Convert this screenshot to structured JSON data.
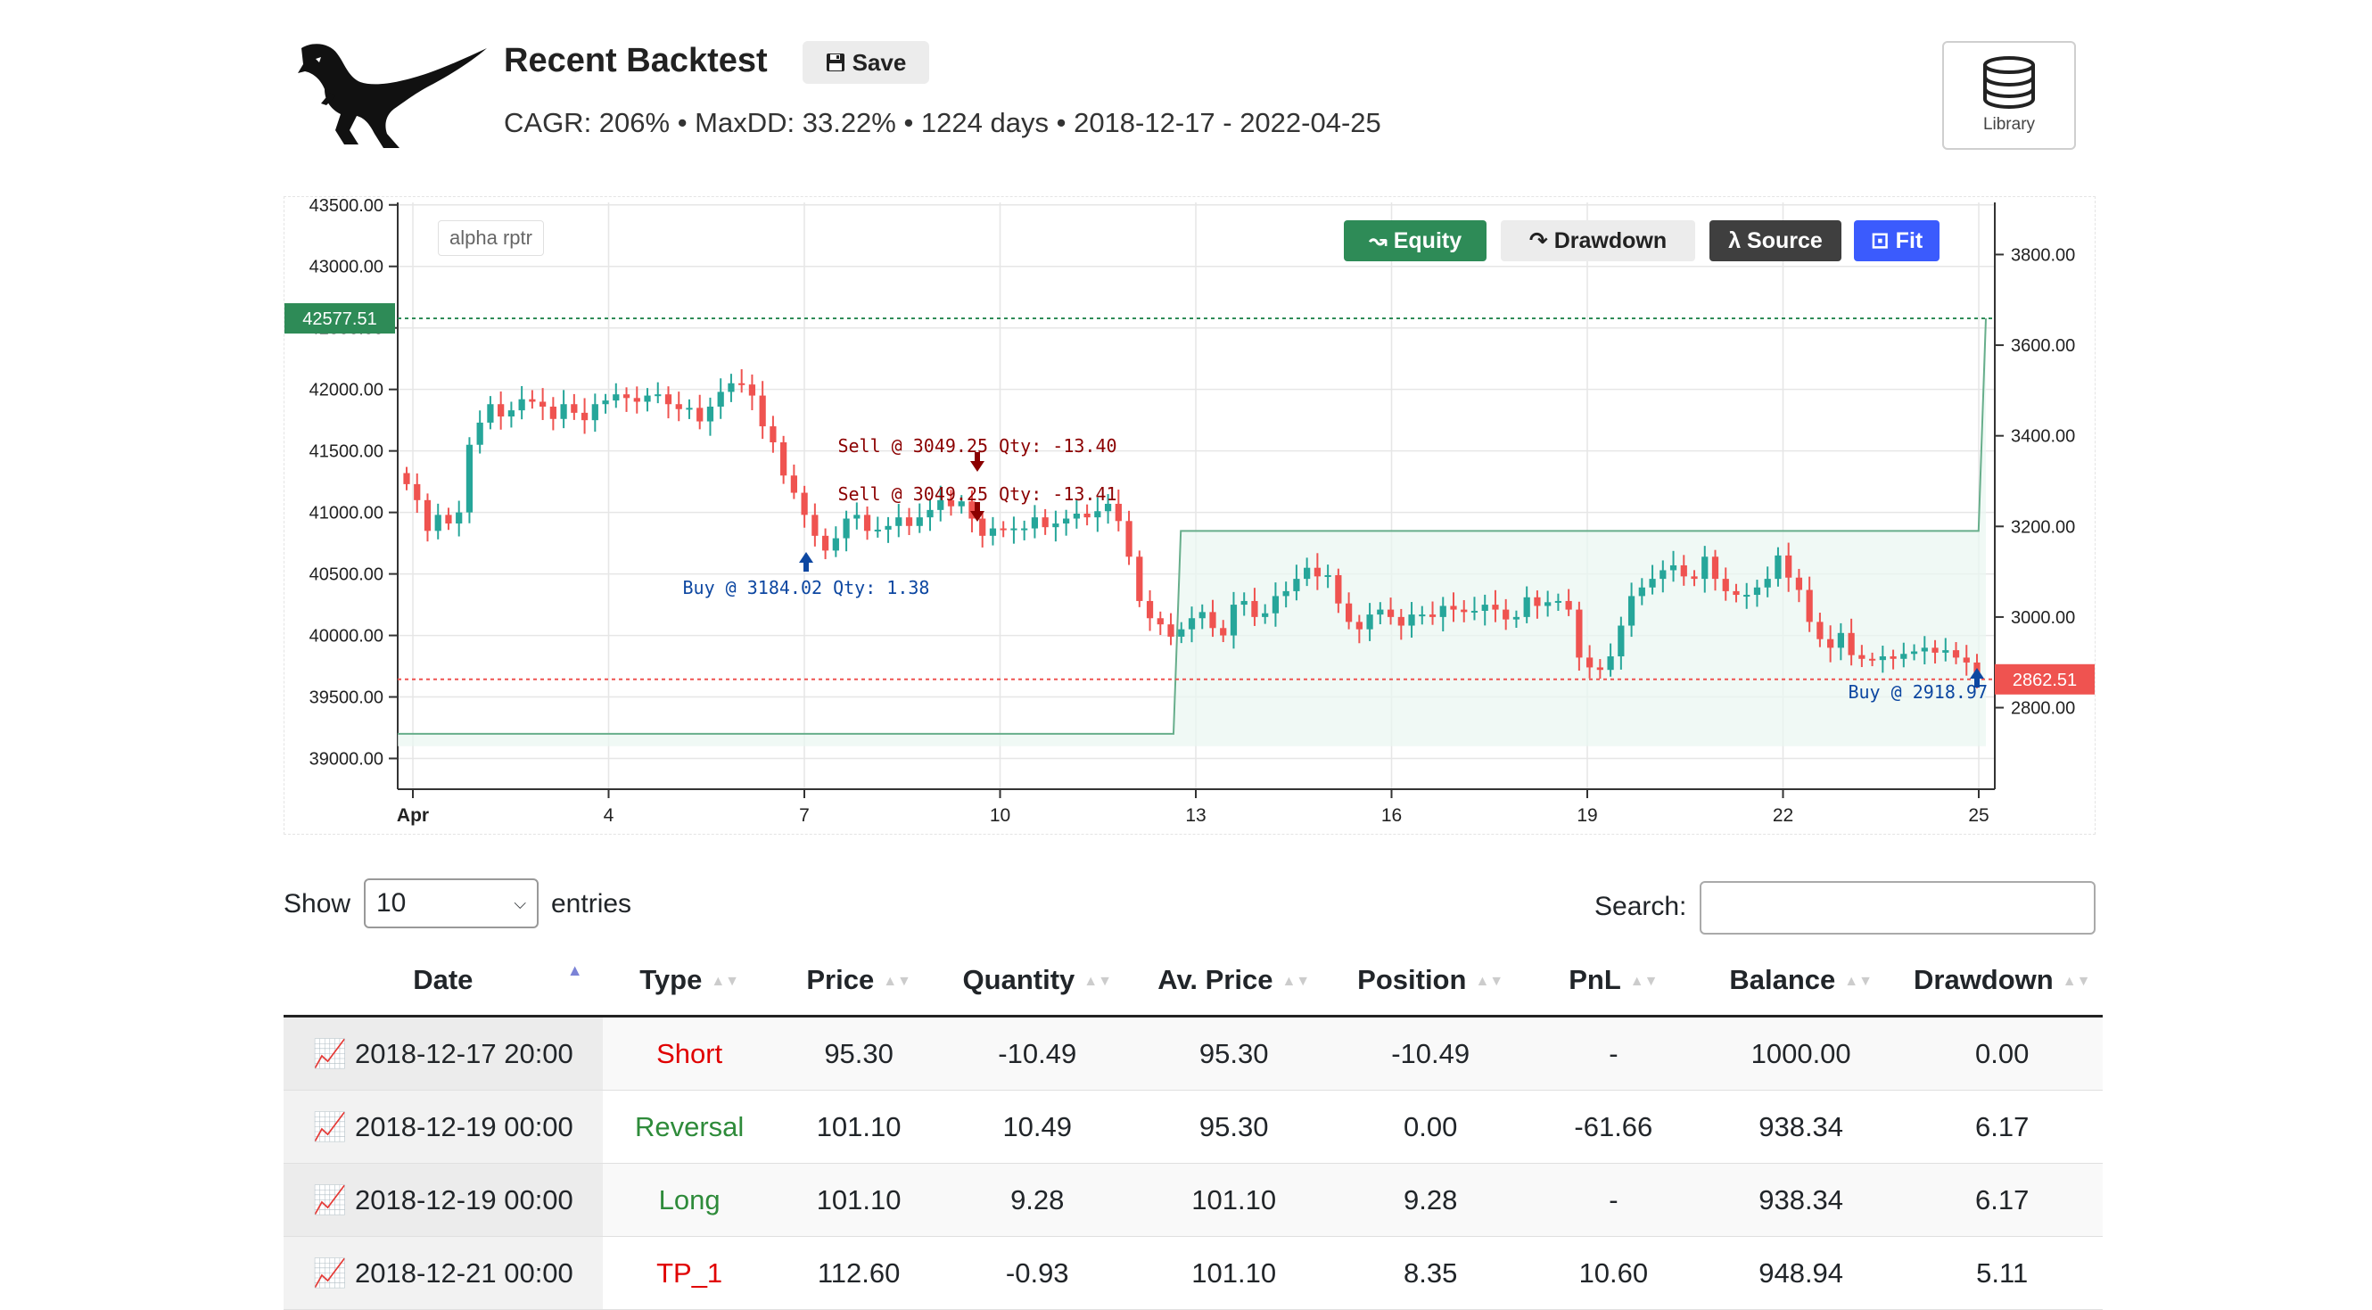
{
  "header": {
    "title": "Recent Backtest",
    "save_label": "Save",
    "stats": "CAGR: 206% • MaxDD: 33.22% • 1224 days • 2018-12-17 - 2022-04-25",
    "library_label": "Library"
  },
  "chart_buttons": {
    "strategy_label": "alpha rptr",
    "equity": "↝ Equity",
    "drawdown": "↷ Drawdown",
    "source": "λ Source",
    "fit": "⊡ Fit"
  },
  "chart_data": {
    "type": "candlestick",
    "left_axis": {
      "ticks": [
        "39000.00",
        "39500.00",
        "40000.00",
        "40500.00",
        "41000.00",
        "41500.00",
        "42000.00",
        "42500.00",
        "43000.00",
        "43500.00"
      ],
      "ylim": [
        38750,
        43520
      ]
    },
    "right_axis": {
      "ticks": [
        "2800.00",
        "3000.00",
        "3200.00",
        "3400.00",
        "3600.00",
        "3800.00"
      ],
      "ylim": [
        2620,
        3915
      ]
    },
    "x_ticks": [
      "Apr",
      "4",
      "7",
      "10",
      "13",
      "16",
      "19",
      "22",
      "25"
    ],
    "last_price_label": "42577.51",
    "last_source_label": "2862.51",
    "equity": [
      39200,
      39200,
      39200,
      39200,
      39200,
      39200,
      39200,
      39200,
      39200,
      39200,
      39200,
      39200,
      39200,
      39200,
      39200,
      39200,
      39200,
      39200,
      39200,
      39200,
      39200,
      39200,
      39200,
      39200,
      39200,
      39200,
      39200,
      39200,
      39200,
      39200,
      39200,
      39200,
      39200,
      39200,
      39200,
      39200,
      39200,
      39200,
      39200,
      39200,
      39200,
      39200,
      39200,
      39200,
      39200,
      39200,
      39200,
      39200,
      39200,
      39200,
      39200,
      39200,
      39200,
      39200,
      39200,
      39200,
      39200,
      39200,
      39200,
      39200,
      39200,
      39200,
      39200,
      39200,
      39200,
      39200,
      39200,
      39200,
      39200,
      39200,
      39200,
      39200,
      39200,
      39200,
      39200,
      39200,
      39200,
      39200,
      39200,
      39200,
      39200,
      39200,
      39200,
      39200,
      39200,
      39200,
      39200,
      39200,
      39200,
      39200,
      39200,
      39200,
      39200,
      39200,
      39200,
      39200,
      39200,
      39200,
      39200,
      39200,
      39200,
      39200,
      39200,
      39200,
      39200,
      39200,
      39200,
      40850,
      40850,
      40850,
      40850,
      40850,
      40850,
      40850,
      40850,
      40850,
      40850,
      40850,
      40850,
      40850,
      40850,
      40850,
      40850,
      40850,
      40850,
      40850,
      40850,
      40850,
      40850,
      40850,
      40850,
      40850,
      40850,
      40850,
      40850,
      40850,
      40850,
      40850,
      40850,
      40850,
      40850,
      40850,
      40850,
      40850,
      40850,
      40850,
      40850,
      40850,
      40850,
      40850,
      40850,
      40850,
      40850,
      40850,
      40850,
      40850,
      40850,
      40850,
      40850,
      40850,
      40850,
      40850,
      40850,
      40850,
      40850,
      40850,
      40850,
      40850,
      40850,
      40850,
      40850,
      40850,
      40850,
      40850,
      40850,
      40850,
      40850,
      40850,
      40850,
      40850,
      40850,
      40850,
      40850,
      40850,
      40850,
      40850,
      40850,
      40850,
      40850,
      40850,
      40850,
      40850,
      40850,
      40850,
      40850,
      40850,
      40850,
      40850,
      40850,
      40850,
      40850,
      40850,
      40850,
      40850,
      40850,
      40850,
      40850,
      40850,
      40850,
      40850,
      40850,
      40850,
      40850,
      40850,
      40850,
      40850,
      40850,
      42577.51
    ],
    "closes": [
      41230,
      41100,
      40850,
      40980,
      40910,
      41000,
      41550,
      41730,
      41880,
      41780,
      41830,
      41920,
      41900,
      41860,
      41760,
      41880,
      41810,
      41750,
      41880,
      41910,
      41960,
      41930,
      41900,
      41950,
      41960,
      41880,
      41840,
      41850,
      41740,
      41860,
      41980,
      42050,
      42040,
      41950,
      41700,
      41570,
      41300,
      41160,
      40980,
      40810,
      40690,
      40790,
      40950,
      40980,
      40850,
      40860,
      40890,
      40960,
      40890,
      40960,
      41020,
      41100,
      41050,
      41090,
      40950,
      40810,
      40870,
      40860,
      40870,
      40870,
      40960,
      40880,
      40910,
      40950,
      40990,
      40960,
      41010,
      41070,
      40930,
      40640,
      40280,
      40140,
      40090,
      39990,
      40050,
      40140,
      40190,
      40060,
      40000,
      40250,
      40280,
      40150,
      40180,
      40320,
      40360,
      40460,
      40550,
      40480,
      40490,
      40260,
      40110,
      40050,
      40170,
      40210,
      40150,
      40080,
      40170,
      40170,
      40150,
      40240,
      40210,
      40190,
      40200,
      40250,
      40210,
      40130,
      40150,
      40310,
      40240,
      40270,
      40280,
      40210,
      39820,
      39740,
      39720,
      39830,
      40080,
      40320,
      40390,
      40460,
      40530,
      40570,
      40480,
      40460,
      40640,
      40460,
      40360,
      40330,
      40330,
      40390,
      40460,
      40650,
      40470,
      40370,
      40110,
      39970,
      39900,
      40020,
      39840,
      39810,
      39800,
      39830,
      39810,
      39850,
      39870,
      39900,
      39860,
      39880,
      39820,
      39780,
      39660
    ]
  },
  "annotations": {
    "buy1": "Buy @ 3184.02 Qty: 1.38",
    "sell1": "Sell @ 3049.25 Qty: -13.40",
    "sell2": "Sell @ 3049.25 Qty: -13.41",
    "buy2": "Buy @ 2918.97"
  },
  "table_controls": {
    "show": "Show",
    "entries_value": "10",
    "entries": "entries",
    "search": "Search:"
  },
  "table": {
    "headers": [
      "Date",
      "Type",
      "Price",
      "Quantity",
      "Av. Price",
      "Position",
      "PnL",
      "Balance",
      "Drawdown"
    ],
    "rows": [
      {
        "date": "2018-12-17 20:00",
        "type": "Short",
        "price": "95.30",
        "qty": "-10.49",
        "avg": "95.30",
        "pos": "-10.49",
        "pnl": "-",
        "bal": "1000.00",
        "dd": "0.00"
      },
      {
        "date": "2018-12-19 00:00",
        "type": "Reversal",
        "price": "101.10",
        "qty": "10.49",
        "avg": "95.30",
        "pos": "0.00",
        "pnl": "-61.66",
        "bal": "938.34",
        "dd": "6.17"
      },
      {
        "date": "2018-12-19 00:00",
        "type": "Long",
        "price": "101.10",
        "qty": "9.28",
        "avg": "101.10",
        "pos": "9.28",
        "pnl": "-",
        "bal": "938.34",
        "dd": "6.17"
      },
      {
        "date": "2018-12-21 00:00",
        "type": "TP_1",
        "price": "112.60",
        "qty": "-0.93",
        "avg": "101.10",
        "pos": "8.35",
        "pnl": "10.60",
        "bal": "948.94",
        "dd": "5.11"
      }
    ]
  }
}
